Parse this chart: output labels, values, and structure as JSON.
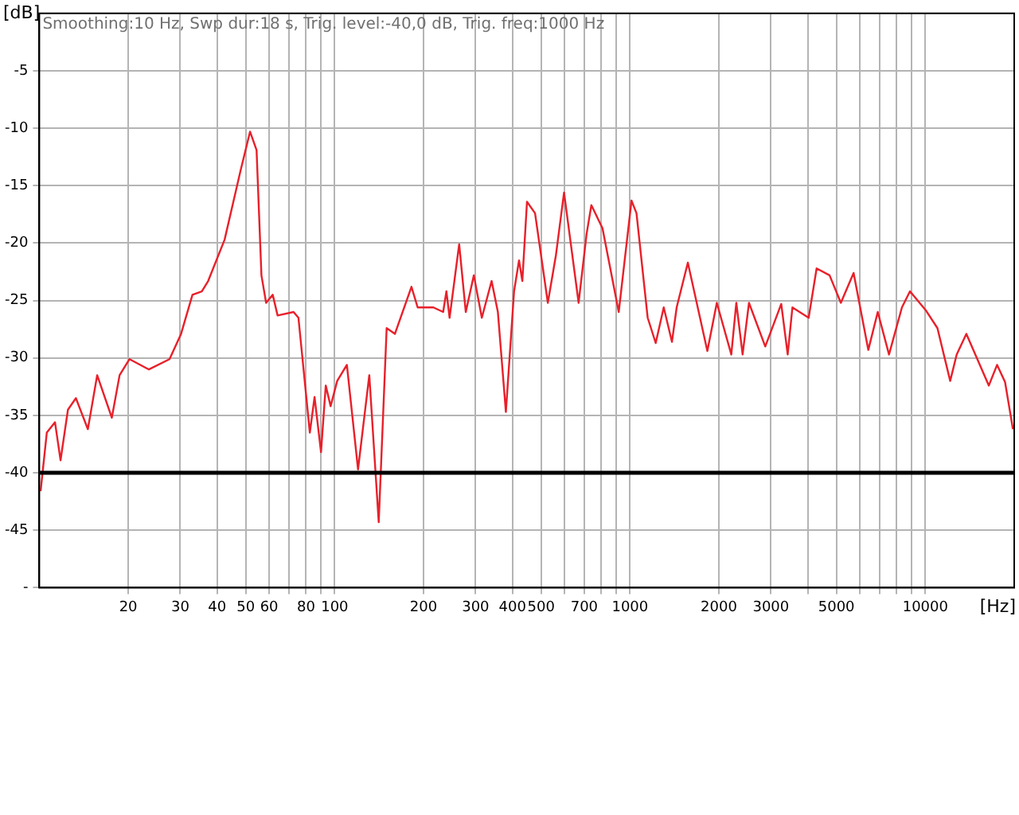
{
  "chart_data": {
    "type": "line",
    "title": "Smoothing:10 Hz, Swp dur:18 s, Trig. level:-40,0 dB, Trig. freq:1000 Hz",
    "xlabel": "[Hz]",
    "ylabel": "[dB]",
    "log": "x",
    "grid": true,
    "legend": false,
    "marker": "none",
    "line_style": "solid",
    "xlim": [
      10,
      20000
    ],
    "ylim": [
      -50,
      0
    ],
    "xticks": [
      20,
      30,
      40,
      50,
      60,
      {
        "value": 70,
        "label": null
      },
      80,
      {
        "value": 90,
        "label": null
      },
      100,
      200,
      300,
      400,
      500,
      {
        "value": 600,
        "label": null
      },
      700,
      {
        "value": 800,
        "label": null
      },
      {
        "value": 900,
        "label": null
      },
      1000,
      2000,
      3000,
      {
        "value": 4000,
        "label": null
      },
      5000,
      {
        "value": 6000,
        "label": null
      },
      {
        "value": 7000,
        "label": null
      },
      {
        "value": 8000,
        "label": null
      },
      {
        "value": 9000,
        "label": null
      },
      10000
    ],
    "yticks": [
      {
        "value": -50,
        "label": "-"
      },
      -45,
      -40,
      -35,
      -30,
      -25,
      -20,
      -15,
      -10,
      -5
    ],
    "ref_lines": [
      {
        "axis": "y",
        "value": -40,
        "label": null,
        "color": "#000000"
      }
    ],
    "series": [
      {
        "color": "#e8202a",
        "x": [
          10.1,
          10.6,
          11.3,
          11.8,
          12.5,
          13.3,
          14.6,
          15.7,
          17.6,
          18.7,
          20.2,
          23.5,
          27.6,
          30.2,
          33,
          35.5,
          37.3,
          42.4,
          48,
          51.7,
          54.4,
          56.5,
          58.6,
          61.7,
          64.1,
          72.6,
          75.4,
          82.4,
          85.5,
          89.9,
          93.3,
          96.9,
          102,
          110,
          120,
          131,
          141,
          150,
          160,
          182,
          191,
          216,
          233,
          239,
          245,
          264,
          278,
          296,
          315,
          340,
          357,
          380,
          405,
          421,
          432,
          448,
          477,
          527,
          561,
          598,
          670,
          713,
          740,
          807,
          916,
          1012,
          1052,
          1148,
          1222,
          1301,
          1387,
          1439,
          1570,
          1828,
          1968,
          2203,
          2291,
          2406,
          2529,
          2871,
          3252,
          3420,
          3548,
          4027,
          4285,
          4740,
          5176,
          5717,
          6412,
          6902,
          7535,
          8333,
          8872,
          10070,
          10990,
          12140,
          12770,
          13770,
          16410,
          17500,
          18620,
          19800
        ],
        "values": [
          -41.6,
          -36.5,
          -35.6,
          -38.9,
          -34.5,
          -33.5,
          -36.2,
          -31.5,
          -35.2,
          -31.5,
          -30.1,
          -31.0,
          -30.1,
          -27.9,
          -24.5,
          -24.2,
          -23.3,
          -19.7,
          -13.7,
          -10.3,
          -11.9,
          -22.8,
          -25.2,
          -24.5,
          -26.3,
          -26.0,
          -26.5,
          -36.5,
          -33.4,
          -38.2,
          -32.4,
          -34.2,
          -32.0,
          -30.6,
          -39.7,
          -31.5,
          -44.3,
          -27.4,
          -27.9,
          -23.8,
          -25.6,
          -25.6,
          -26.0,
          -24.2,
          -26.5,
          -20.1,
          -26.0,
          -22.8,
          -26.5,
          -23.3,
          -26.0,
          -34.7,
          -24.2,
          -21.5,
          -23.3,
          -16.4,
          -17.4,
          -25.2,
          -21.1,
          -15.6,
          -25.2,
          -19.2,
          -16.7,
          -18.7,
          -26.0,
          -16.3,
          -17.4,
          -26.5,
          -28.7,
          -25.6,
          -28.6,
          -25.6,
          -21.7,
          -29.4,
          -25.2,
          -29.7,
          -25.2,
          -29.7,
          -25.2,
          -29.0,
          -25.3,
          -29.7,
          -25.6,
          -26.5,
          -22.2,
          -22.8,
          -25.2,
          -22.6,
          -29.3,
          -26.0,
          -29.7,
          -25.6,
          -24.2,
          -25.9,
          -27.4,
          -32.0,
          -29.7,
          -27.9,
          -32.4,
          -30.6,
          -32.1,
          -36.2
        ]
      }
    ]
  }
}
